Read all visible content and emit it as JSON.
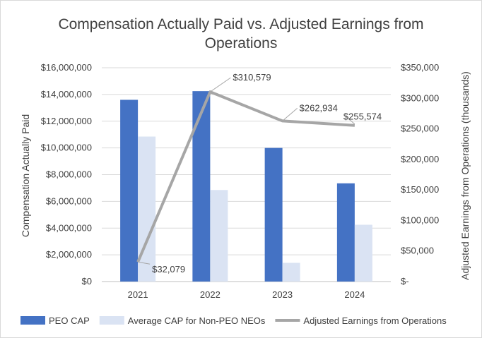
{
  "chart_data": {
    "type": "bar",
    "title": "Compensation Actually Paid vs. Adjusted Earnings from Operations",
    "categories": [
      "2021",
      "2022",
      "2023",
      "2024"
    ],
    "ylabel": "Compensation Actually Paid",
    "y2label": "Adjusted Earnings from Operations  (thousands)",
    "ylim": [
      0,
      16000000
    ],
    "y2lim": [
      0,
      350000
    ],
    "yticks": [
      "$0",
      "$2,000,000",
      "$4,000,000",
      "$6,000,000",
      "$8,000,000",
      "$10,000,000",
      "$12,000,000",
      "$14,000,000",
      "$16,000,000"
    ],
    "y2ticks": [
      "$-",
      "$50,000",
      "$100,000",
      "$150,000",
      "$200,000",
      "$250,000",
      "$300,000",
      "$350,000"
    ],
    "series": [
      {
        "name": "PEO CAP",
        "type": "bar",
        "axis": "left",
        "color": "#4472c4",
        "values": [
          13600000,
          14250000,
          10000000,
          7350000
        ]
      },
      {
        "name": "Average CAP for Non-PEO NEOs",
        "type": "bar",
        "axis": "left",
        "color": "#dae3f3",
        "values": [
          10850000,
          6850000,
          1400000,
          4250000
        ]
      },
      {
        "name": "Adjusted Earnings from Operations",
        "type": "line",
        "axis": "right",
        "color": "#a6a6a6",
        "values": [
          32079,
          310579,
          262934,
          255574
        ],
        "labels": [
          "$32,079",
          "$310,579",
          "$262,934",
          "$255,574"
        ]
      }
    ],
    "legend_position": "bottom",
    "grid": true
  }
}
